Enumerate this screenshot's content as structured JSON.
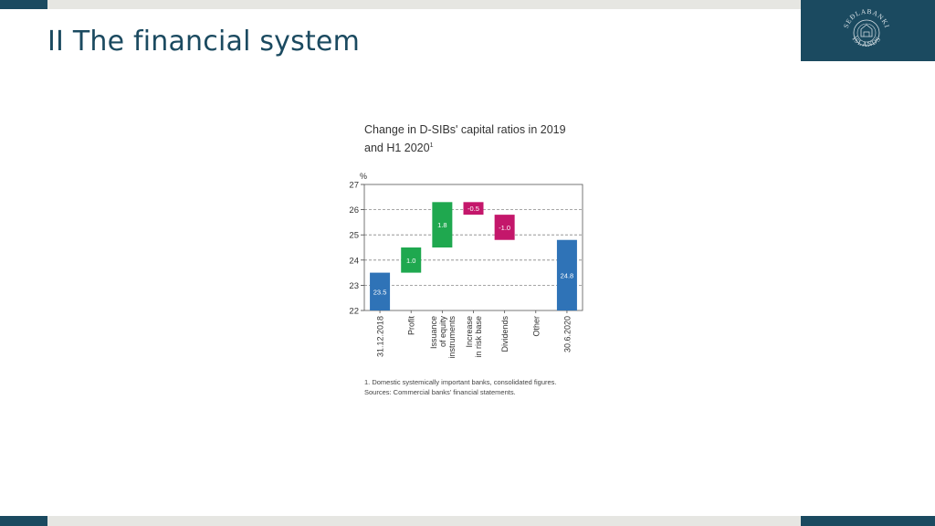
{
  "slide": {
    "title": "II The financial system",
    "logo": {
      "text_top": "SEÐLABANKI",
      "text_bottom": "ÍSLANDS"
    }
  },
  "colors": {
    "brand": "#1b4a60",
    "blue": "#2f73b7",
    "green": "#1fa84f",
    "magenta": "#c4176b",
    "light_bar": "#e6e6e2"
  },
  "chart_data": {
    "type": "waterfall",
    "title": "Change in D-SIBs' capital ratios in 2019 and H1 2020",
    "title_footnote_marker": "1",
    "ylabel": "%",
    "ylim": [
      22,
      27
    ],
    "yticks": [
      22,
      23,
      24,
      25,
      26,
      27
    ],
    "grid": "dashed horizontal",
    "bars": [
      {
        "category": "31.12.2018",
        "label_lines": [
          "31.12.2018"
        ],
        "start": 22,
        "end": 23.5,
        "value_label": "23.5",
        "color": "blue"
      },
      {
        "category": "Profit",
        "label_lines": [
          "Profit"
        ],
        "start": 23.5,
        "end": 24.5,
        "value_label": "1.0",
        "color": "green"
      },
      {
        "category": "Issuance of equity instruments",
        "label_lines": [
          "Issuance",
          "of equity",
          "instruments"
        ],
        "start": 24.5,
        "end": 26.3,
        "value_label": "1.8",
        "color": "green"
      },
      {
        "category": "Increase in risk base",
        "label_lines": [
          "Increase",
          "in risk base"
        ],
        "start": 26.3,
        "end": 25.8,
        "value_label": "-0.5",
        "color": "magenta"
      },
      {
        "category": "Dividends",
        "label_lines": [
          "Dividends"
        ],
        "start": 25.8,
        "end": 24.8,
        "value_label": "-1.0",
        "color": "magenta"
      },
      {
        "category": "Other",
        "label_lines": [
          "Other"
        ],
        "start": 24.8,
        "end": 24.8,
        "value_label": "",
        "color": "none"
      },
      {
        "category": "30.6.2020",
        "label_lines": [
          "30.6.2020"
        ],
        "start": 22,
        "end": 24.8,
        "value_label": "24.8",
        "color": "blue"
      }
    ],
    "footnotes": [
      "1. Domestic systemically important banks, consolidated figures.",
      "Sources: Commercial banks' financial statements."
    ]
  }
}
